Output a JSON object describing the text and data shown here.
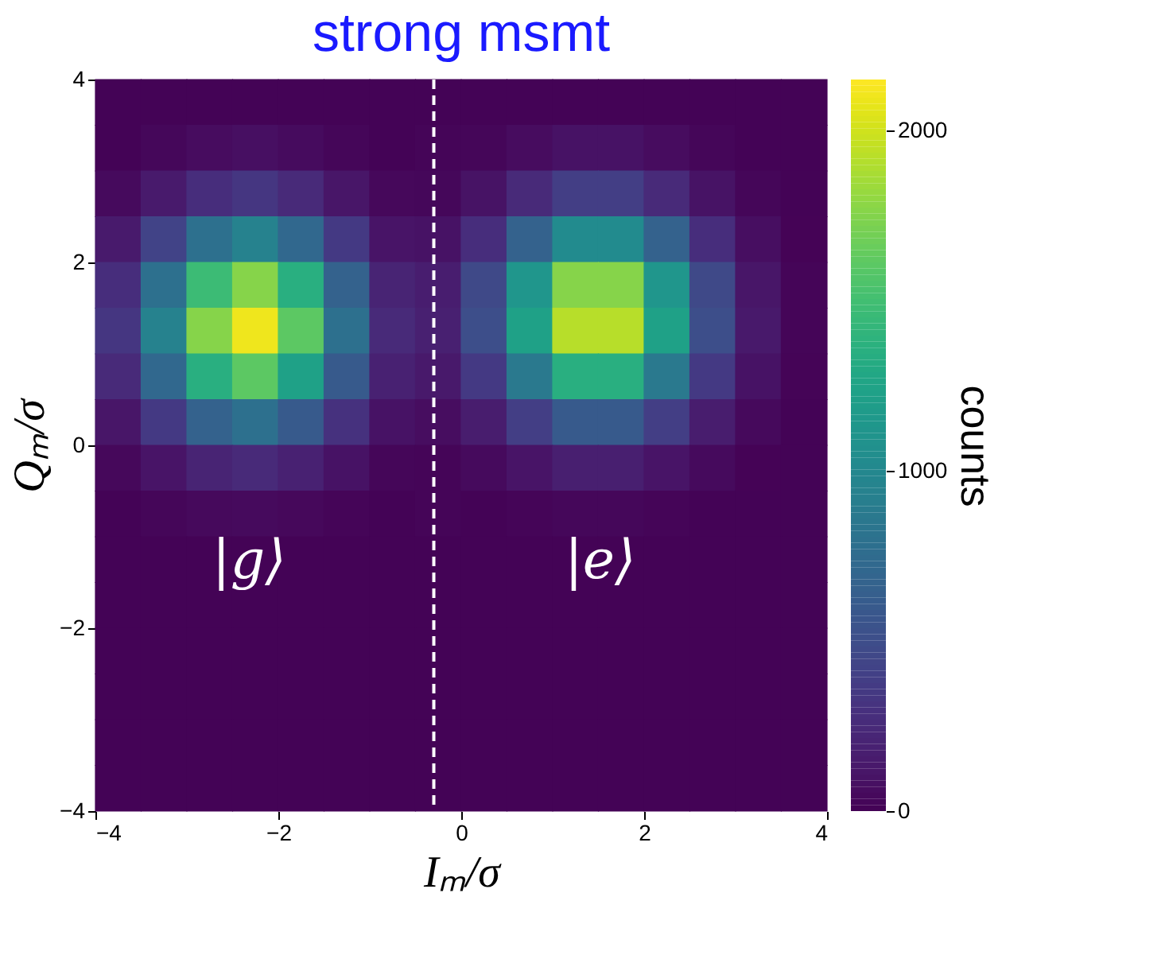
{
  "chart_data": {
    "type": "scatter",
    "title": "strong msmt",
    "xlabel": "Iₘ/σ",
    "ylabel": "Qₘ/σ",
    "clabel": "counts",
    "marker": "square",
    "x": [
      -3.75,
      -3.25,
      -2.75,
      -2.25,
      -1.75,
      -1.25,
      -0.75,
      -0.25,
      0.25,
      0.75,
      1.25,
      1.75,
      2.25,
      2.75,
      3.25,
      3.75,
      -3.75,
      -3.25,
      -2.75,
      -2.25,
      -1.75,
      -1.25,
      -0.75,
      -0.25,
      0.25,
      0.75,
      1.25,
      1.75,
      2.25,
      2.75,
      3.25,
      3.75,
      -3.75,
      -3.25,
      -2.75,
      -2.25,
      -1.75,
      -1.25,
      -0.75,
      -0.25,
      0.25,
      0.75,
      1.25,
      1.75,
      2.25,
      2.75,
      3.25,
      3.75,
      -3.75,
      -3.25,
      -2.75,
      -2.25,
      -1.75,
      -1.25,
      -0.75,
      -0.25,
      0.25,
      0.75,
      1.25,
      1.75,
      2.25,
      2.75,
      3.25,
      3.75,
      -3.75,
      -3.25,
      -2.75,
      -2.25,
      -1.75,
      -1.25,
      -0.75,
      -0.25,
      0.25,
      0.75,
      1.25,
      1.75,
      2.25,
      2.75,
      3.25,
      3.75,
      -3.75,
      -3.25,
      -2.75,
      -2.25,
      -1.75,
      -1.25,
      -0.75,
      -0.25,
      0.25,
      0.75,
      1.25,
      1.75,
      2.25,
      2.75,
      3.25,
      3.75,
      -3.75,
      -3.25,
      -2.75,
      -2.25,
      -1.75,
      -1.25,
      -0.75,
      -0.25,
      0.25,
      0.75,
      1.25,
      1.75,
      2.25,
      2.75,
      3.25,
      3.75,
      -3.75,
      -3.25,
      -2.75,
      -2.25,
      -1.75,
      -1.25,
      -0.75,
      -0.25,
      0.25,
      0.75,
      1.25,
      1.75,
      2.25,
      2.75,
      3.25,
      3.75,
      -3.75,
      -3.25,
      -2.75,
      -2.25,
      -1.75,
      -1.25,
      -0.75,
      -0.25,
      0.25,
      0.75,
      1.25,
      1.75,
      2.25,
      2.75,
      3.25,
      3.75,
      -3.75,
      -3.25,
      -2.75,
      -2.25,
      -1.75,
      -1.25,
      -0.75,
      -0.25,
      0.25,
      0.75,
      1.25,
      1.75,
      2.25,
      2.75,
      3.25,
      3.75,
      -3.75,
      -3.25,
      -2.75,
      -2.25,
      -1.75,
      -1.25,
      -0.75,
      -0.25,
      0.25,
      0.75,
      1.25,
      1.75,
      2.25,
      2.75,
      3.25,
      3.75,
      -3.75,
      -3.25,
      -2.75,
      -2.25,
      -1.75,
      -1.25,
      -0.75,
      -0.25,
      0.25,
      0.75,
      1.25,
      1.75,
      2.25,
      2.75,
      3.25,
      3.75,
      -3.75,
      -3.25,
      -2.75,
      -2.25,
      -1.75,
      -1.25,
      -0.75,
      -0.25,
      0.25,
      0.75,
      1.25,
      1.75,
      2.25,
      2.75,
      3.25,
      3.75,
      -3.75,
      -3.25,
      -2.75,
      -2.25,
      -1.75,
      -1.25,
      -0.75,
      -0.25,
      0.25,
      0.75,
      1.25,
      1.75,
      2.25,
      2.75,
      3.25,
      3.75,
      -3.75,
      -3.25,
      -2.75,
      -2.25,
      -1.75,
      -1.25,
      -0.75,
      -0.25,
      0.25,
      0.75,
      1.25,
      1.75,
      2.25,
      2.75,
      3.25,
      3.75,
      -3.75,
      -3.25,
      -2.75,
      -2.25,
      -1.75,
      -1.25,
      -0.75,
      -0.25,
      0.25,
      0.75,
      1.25,
      1.75,
      2.25,
      2.75,
      3.25,
      3.75
    ],
    "values": [
      3.75,
      3.75,
      3.75,
      3.75,
      3.75,
      3.75,
      3.75,
      3.75,
      3.75,
      3.75,
      3.75,
      3.75,
      3.75,
      3.75,
      3.75,
      3.75,
      3.25,
      3.25,
      3.25,
      3.25,
      3.25,
      3.25,
      3.25,
      3.25,
      3.25,
      3.25,
      3.25,
      3.25,
      3.25,
      3.25,
      3.25,
      3.25,
      2.75,
      2.75,
      2.75,
      2.75,
      2.75,
      2.75,
      2.75,
      2.75,
      2.75,
      2.75,
      2.75,
      2.75,
      2.75,
      2.75,
      2.75,
      2.75,
      2.25,
      2.25,
      2.25,
      2.25,
      2.25,
      2.25,
      2.25,
      2.25,
      2.25,
      2.25,
      2.25,
      2.25,
      2.25,
      2.25,
      2.25,
      2.25,
      1.75,
      1.75,
      1.75,
      1.75,
      1.75,
      1.75,
      1.75,
      1.75,
      1.75,
      1.75,
      1.75,
      1.75,
      1.75,
      1.75,
      1.75,
      1.75,
      1.25,
      1.25,
      1.25,
      1.25,
      1.25,
      1.25,
      1.25,
      1.25,
      1.25,
      1.25,
      1.25,
      1.25,
      1.25,
      1.25,
      1.25,
      1.25,
      0.75,
      0.75,
      0.75,
      0.75,
      0.75,
      0.75,
      0.75,
      0.75,
      0.75,
      0.75,
      0.75,
      0.75,
      0.75,
      0.75,
      0.75,
      0.75,
      0.25,
      0.25,
      0.25,
      0.25,
      0.25,
      0.25,
      0.25,
      0.25,
      0.25,
      0.25,
      0.25,
      0.25,
      0.25,
      0.25,
      0.25,
      0.25,
      -0.25,
      -0.25,
      -0.25,
      -0.25,
      -0.25,
      -0.25,
      -0.25,
      -0.25,
      -0.25,
      -0.25,
      -0.25,
      -0.25,
      -0.25,
      -0.25,
      -0.25,
      -0.25,
      -0.75,
      -0.75,
      -0.75,
      -0.75,
      -0.75,
      -0.75,
      -0.75,
      -0.75,
      -0.75,
      -0.75,
      -0.75,
      -0.75,
      -0.75,
      -0.75,
      -0.75,
      -0.75,
      -1.25,
      -1.25,
      -1.25,
      -1.25,
      -1.25,
      -1.25,
      -1.25,
      -1.25,
      -1.25,
      -1.25,
      -1.25,
      -1.25,
      -1.25,
      -1.25,
      -1.25,
      -1.25,
      -1.75,
      -1.75,
      -1.75,
      -1.75,
      -1.75,
      -1.75,
      -1.75,
      -1.75,
      -1.75,
      -1.75,
      -1.75,
      -1.75,
      -1.75,
      -1.75,
      -1.75,
      -1.75,
      -2.25,
      -2.25,
      -2.25,
      -2.25,
      -2.25,
      -2.25,
      -2.25,
      -2.25,
      -2.25,
      -2.25,
      -2.25,
      -2.25,
      -2.25,
      -2.25,
      -2.25,
      -2.25,
      -2.75,
      -2.75,
      -2.75,
      -2.75,
      -2.75,
      -2.75,
      -2.75,
      -2.75,
      -2.75,
      -2.75,
      -2.75,
      -2.75,
      -2.75,
      -2.75,
      -2.75,
      -2.75,
      -3.25,
      -3.25,
      -3.25,
      -3.25,
      -3.25,
      -3.25,
      -3.25,
      -3.25,
      -3.25,
      -3.25,
      -3.25,
      -3.25,
      -3.25,
      -3.25,
      -3.25,
      -3.25,
      -3.75,
      -3.75,
      -3.75,
      -3.75,
      -3.75,
      -3.75,
      -3.75,
      -3.75,
      -3.75,
      -3.75,
      -3.75,
      -3.75,
      -3.75,
      -3.75,
      -3.75,
      -3.75
    ],
    "cvalues": [
      10,
      10,
      10,
      10,
      10,
      10,
      10,
      10,
      10,
      10,
      10,
      10,
      10,
      10,
      10,
      10,
      10,
      35,
      60,
      75,
      55,
      25,
      10,
      20,
      25,
      60,
      95,
      95,
      60,
      25,
      10,
      10,
      50,
      145,
      275,
      330,
      250,
      120,
      40,
      35,
      100,
      250,
      390,
      390,
      250,
      100,
      25,
      10,
      145,
      425,
      790,
      945,
      720,
      355,
      110,
      95,
      275,
      660,
      1030,
      1030,
      660,
      275,
      70,
      12,
      275,
      790,
      1470,
      1760,
      1350,
      660,
      210,
      165,
      465,
      1125,
      1760,
      1760,
      1125,
      465,
      120,
      20,
      330,
      945,
      1760,
      2100,
      1610,
      790,
      250,
      185,
      505,
      1230,
      1920,
      1920,
      1230,
      505,
      135,
      22,
      250,
      720,
      1350,
      1610,
      1230,
      605,
      190,
      135,
      355,
      865,
      1350,
      1350,
      865,
      355,
      95,
      15,
      120,
      355,
      660,
      790,
      605,
      300,
      95,
      65,
      160,
      390,
      605,
      605,
      390,
      160,
      45,
      10,
      40,
      110,
      210,
      250,
      190,
      95,
      30,
      22,
      50,
      110,
      175,
      175,
      110,
      50,
      12,
      10,
      10,
      25,
      45,
      50,
      40,
      20,
      10,
      20,
      10,
      20,
      35,
      35,
      20,
      10,
      10,
      10,
      10,
      10,
      10,
      10,
      10,
      10,
      10,
      10,
      10,
      10,
      10,
      10,
      10,
      10,
      10,
      10,
      10,
      10,
      10,
      10,
      10,
      10,
      10,
      10,
      10,
      10,
      10,
      10,
      10,
      10,
      10,
      10,
      10,
      10,
      10,
      10,
      10,
      10,
      10,
      10,
      10,
      10,
      10,
      10,
      10,
      10,
      10,
      10,
      10,
      10,
      10,
      10,
      10,
      10,
      10,
      10,
      10,
      10,
      10,
      10,
      10,
      10,
      10,
      10,
      10,
      10,
      10,
      10,
      10,
      10,
      10,
      10,
      10,
      10,
      10,
      10,
      10,
      10,
      10,
      10,
      10,
      10,
      10,
      10,
      10,
      10,
      10,
      10,
      10,
      10,
      10,
      10,
      10,
      10,
      10,
      10
    ],
    "xlim": [
      -4,
      4
    ],
    "xticks": [
      -4,
      -2,
      0,
      2,
      4
    ],
    "ylim": [
      -4,
      4
    ],
    "yticks": [
      -4,
      -2,
      0,
      2,
      4
    ],
    "clim": [
      0,
      2150
    ],
    "cticks": [
      0,
      1000,
      2000
    ],
    "ref_lines": [
      {
        "axis": "x",
        "value": -0.3,
        "color": "#ffffff",
        "line_style": "dashed"
      }
    ],
    "annotations": [
      "|g⟩",
      "|e⟩"
    ],
    "grid": false
  }
}
